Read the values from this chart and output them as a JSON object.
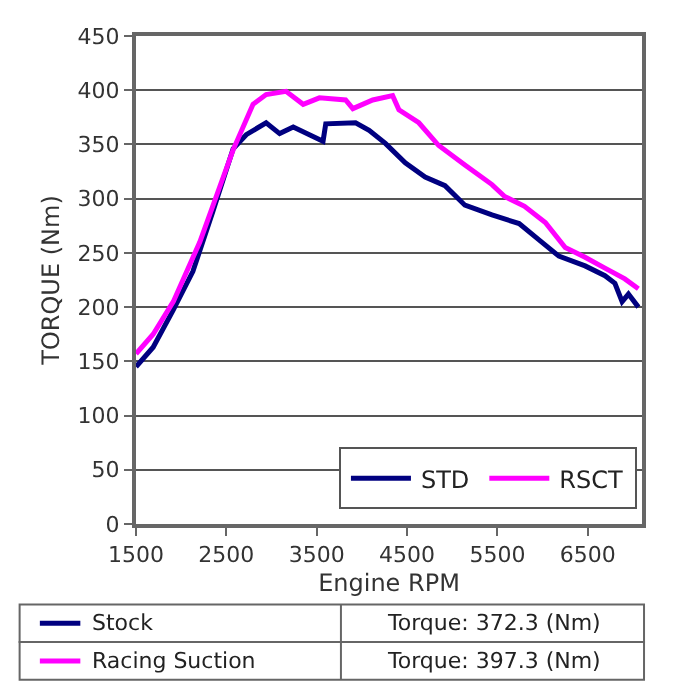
{
  "chart_data": {
    "type": "line",
    "xlabel": "Engine RPM",
    "ylabel": "TORQUE (Nm)",
    "xlim": [
      1500,
      7100
    ],
    "xticks": [
      1500,
      2500,
      3500,
      4500,
      5500,
      6500
    ],
    "ylim": [
      0,
      450
    ],
    "yticks": [
      0,
      50,
      100,
      150,
      200,
      250,
      300,
      350,
      400,
      450
    ],
    "grid": "y",
    "legend": "bottom right",
    "marker": "none",
    "line_style": "solid",
    "series": [
      {
        "name": "STD",
        "color": "#000080",
        "x": [
          1500,
          1690,
          1910,
          2130,
          2350,
          2575,
          2720,
          2940,
          3090,
          3240,
          3570,
          3600,
          3930,
          4080,
          4260,
          4480,
          4700,
          4920,
          5140,
          5440,
          5740,
          5960,
          6180,
          6470,
          6690,
          6800,
          6880,
          6950,
          7060
        ],
        "values": [
          145,
          163,
          197,
          233,
          288,
          346,
          359,
          370,
          360,
          366,
          353,
          369,
          370,
          363,
          351,
          333,
          320,
          312,
          294,
          285,
          277,
          262,
          247,
          238,
          229,
          222,
          205,
          212,
          200
        ]
      },
      {
        "name": "RSCT",
        "color": "#ff00ff",
        "x": [
          1500,
          1690,
          1913,
          2206,
          2427,
          2575,
          2795,
          2940,
          3160,
          3350,
          3530,
          3820,
          3900,
          4120,
          4340,
          4410,
          4630,
          4850,
          5140,
          5440,
          5580,
          5800,
          6030,
          6250,
          6470,
          6690,
          6910,
          7060
        ],
        "values": [
          157,
          175,
          205,
          260,
          311,
          345,
          387,
          396,
          399,
          387,
          393,
          391,
          383,
          391,
          395,
          382,
          370,
          349,
          331,
          313,
          302,
          293,
          278,
          255,
          246,
          236,
          226,
          217
        ]
      }
    ],
    "annotations": [
      "Stock",
      "Torque: 372.3 (Nm)",
      "Racing Suction",
      "Torque: 397.3 (Nm)"
    ]
  }
}
